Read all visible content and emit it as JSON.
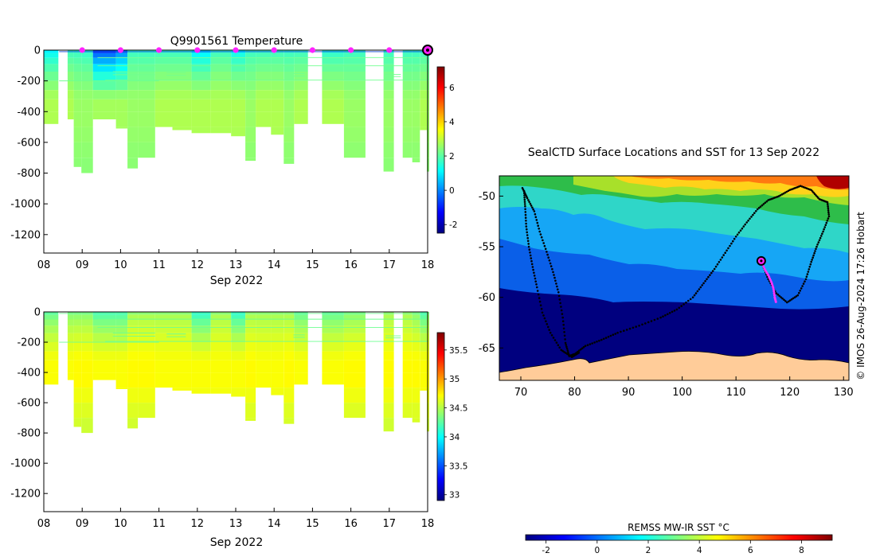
{
  "chart_data": [
    {
      "id": "temp",
      "type": "heatmap",
      "title": "Q9901561  Temperature",
      "xlabel": "Sep 2022",
      "x_ticks": [
        "08",
        "09",
        "10",
        "11",
        "12",
        "13",
        "14",
        "15",
        "16",
        "17",
        "18"
      ],
      "y_ticks": [
        "0",
        "-200",
        "-400",
        "-600",
        "-800",
        "-1000",
        "-1200"
      ],
      "ylim": [
        -1320,
        0
      ],
      "xlim": [
        8,
        18
      ],
      "colorbar": {
        "min": -2.5,
        "max": 7.2,
        "ticks": [
          "-2",
          "0",
          "2",
          "4",
          "6"
        ],
        "tick_values": [
          -2,
          0,
          2,
          4,
          6
        ]
      },
      "surface_markers": [
        9,
        10,
        11,
        12,
        13,
        14,
        15,
        16,
        17
      ],
      "latest_marker": 18,
      "profiles": [
        {
          "x0": 8.0,
          "x1": 8.38,
          "max_depth": 480,
          "surface": 0.8,
          "deep": 2.8
        },
        {
          "x0": 8.62,
          "x1": 8.78,
          "max_depth": 450,
          "surface": 1.5,
          "deep": 2.8
        },
        {
          "x0": 8.78,
          "x1": 8.98,
          "max_depth": 760,
          "surface": 1.5,
          "deep": 2.6
        },
        {
          "x0": 8.98,
          "x1": 9.28,
          "max_depth": 800,
          "surface": 1.4,
          "deep": 2.6
        },
        {
          "x0": 9.28,
          "x1": 9.88,
          "max_depth": 450,
          "surface": -1.2,
          "deep": 2.7
        },
        {
          "x0": 9.88,
          "x1": 10.18,
          "max_depth": 510,
          "surface": -0.6,
          "deep": 2.7
        },
        {
          "x0": 10.18,
          "x1": 10.45,
          "max_depth": 770,
          "surface": 1.5,
          "deep": 2.6
        },
        {
          "x0": 10.45,
          "x1": 10.9,
          "max_depth": 700,
          "surface": 1.5,
          "deep": 2.6
        },
        {
          "x0": 10.9,
          "x1": 11.35,
          "max_depth": 500,
          "surface": 1.5,
          "deep": 2.8
        },
        {
          "x0": 11.35,
          "x1": 11.85,
          "max_depth": 520,
          "surface": 1.5,
          "deep": 2.8
        },
        {
          "x0": 11.85,
          "x1": 12.35,
          "max_depth": 540,
          "surface": 0.6,
          "deep": 2.8
        },
        {
          "x0": 12.35,
          "x1": 12.88,
          "max_depth": 540,
          "surface": 1.5,
          "deep": 2.8
        },
        {
          "x0": 12.88,
          "x1": 13.25,
          "max_depth": 560,
          "surface": 0.9,
          "deep": 2.8
        },
        {
          "x0": 13.25,
          "x1": 13.52,
          "max_depth": 720,
          "surface": 1.5,
          "deep": 2.6
        },
        {
          "x0": 13.52,
          "x1": 13.92,
          "max_depth": 500,
          "surface": 1.5,
          "deep": 2.8
        },
        {
          "x0": 13.92,
          "x1": 14.25,
          "max_depth": 550,
          "surface": 1.5,
          "deep": 2.8
        },
        {
          "x0": 14.25,
          "x1": 14.52,
          "max_depth": 740,
          "surface": 1.5,
          "deep": 2.6
        },
        {
          "x0": 14.52,
          "x1": 14.88,
          "max_depth": 480,
          "surface": 1.5,
          "deep": 2.8
        },
        {
          "x0": 15.25,
          "x1": 15.82,
          "max_depth": 480,
          "surface": 1.3,
          "deep": 2.8
        },
        {
          "x0": 15.82,
          "x1": 16.38,
          "max_depth": 700,
          "surface": 1.5,
          "deep": 2.6
        },
        {
          "x0": 16.85,
          "x1": 17.12,
          "max_depth": 790,
          "surface": 1.5,
          "deep": 2.6
        },
        {
          "x0": 17.35,
          "x1": 17.6,
          "max_depth": 700,
          "surface": 1.5,
          "deep": 2.6
        },
        {
          "x0": 17.6,
          "x1": 17.8,
          "max_depth": 730,
          "surface": 1.5,
          "deep": 2.6
        },
        {
          "x0": 17.8,
          "x1": 17.98,
          "max_depth": 520,
          "surface": 1.5,
          "deep": 2.8
        },
        {
          "x0": 17.98,
          "x1": 18.05,
          "max_depth": 790,
          "surface": 1.5,
          "deep": 2.6
        }
      ]
    },
    {
      "id": "sal",
      "type": "heatmap",
      "title": "",
      "xlabel": "Sep 2022",
      "x_ticks": [
        "08",
        "09",
        "10",
        "11",
        "12",
        "13",
        "14",
        "15",
        "16",
        "17",
        "18"
      ],
      "y_ticks": [
        "0",
        "-200",
        "-400",
        "-600",
        "-800",
        "-1000",
        "-1200"
      ],
      "ylim": [
        -1320,
        0
      ],
      "xlim": [
        8,
        18
      ],
      "colorbar": {
        "min": 32.9,
        "max": 35.8,
        "ticks": [
          "33",
          "33.5",
          "34",
          "34.5",
          "35",
          "35.5"
        ],
        "tick_values": [
          33,
          33.5,
          34,
          34.5,
          35,
          35.5
        ]
      },
      "profiles": [
        {
          "x0": 8.0,
          "x1": 8.38,
          "max_depth": 480,
          "surface": 34.2,
          "deep": 34.7
        },
        {
          "x0": 8.62,
          "x1": 8.78,
          "max_depth": 450,
          "surface": 34.3,
          "deep": 34.7
        },
        {
          "x0": 8.78,
          "x1": 8.98,
          "max_depth": 760,
          "surface": 34.3,
          "deep": 34.72
        },
        {
          "x0": 8.98,
          "x1": 9.28,
          "max_depth": 800,
          "surface": 34.3,
          "deep": 34.72
        },
        {
          "x0": 9.28,
          "x1": 9.88,
          "max_depth": 450,
          "surface": 34.1,
          "deep": 34.7
        },
        {
          "x0": 9.88,
          "x1": 10.18,
          "max_depth": 510,
          "surface": 34.1,
          "deep": 34.7
        },
        {
          "x0": 10.18,
          "x1": 10.45,
          "max_depth": 770,
          "surface": 34.4,
          "deep": 34.72
        },
        {
          "x0": 10.45,
          "x1": 10.9,
          "max_depth": 700,
          "surface": 34.4,
          "deep": 34.72
        },
        {
          "x0": 10.9,
          "x1": 11.35,
          "max_depth": 500,
          "surface": 34.4,
          "deep": 34.7
        },
        {
          "x0": 11.35,
          "x1": 11.85,
          "max_depth": 520,
          "surface": 34.4,
          "deep": 34.7
        },
        {
          "x0": 11.85,
          "x1": 12.35,
          "max_depth": 540,
          "surface": 34.0,
          "deep": 34.7
        },
        {
          "x0": 12.35,
          "x1": 12.88,
          "max_depth": 540,
          "surface": 34.4,
          "deep": 34.7
        },
        {
          "x0": 12.88,
          "x1": 13.25,
          "max_depth": 560,
          "surface": 34.0,
          "deep": 34.7
        },
        {
          "x0": 13.25,
          "x1": 13.52,
          "max_depth": 720,
          "surface": 34.4,
          "deep": 34.72
        },
        {
          "x0": 13.52,
          "x1": 13.92,
          "max_depth": 500,
          "surface": 34.4,
          "deep": 34.7
        },
        {
          "x0": 13.92,
          "x1": 14.25,
          "max_depth": 550,
          "surface": 34.4,
          "deep": 34.7
        },
        {
          "x0": 14.25,
          "x1": 14.52,
          "max_depth": 740,
          "surface": 34.4,
          "deep": 34.72
        },
        {
          "x0": 14.52,
          "x1": 14.88,
          "max_depth": 480,
          "surface": 34.2,
          "deep": 34.7
        },
        {
          "x0": 15.25,
          "x1": 15.82,
          "max_depth": 480,
          "surface": 34.2,
          "deep": 34.7
        },
        {
          "x0": 15.82,
          "x1": 16.38,
          "max_depth": 700,
          "surface": 34.3,
          "deep": 34.72
        },
        {
          "x0": 16.85,
          "x1": 17.12,
          "max_depth": 790,
          "surface": 34.4,
          "deep": 34.72
        },
        {
          "x0": 17.35,
          "x1": 17.6,
          "max_depth": 700,
          "surface": 34.4,
          "deep": 34.72
        },
        {
          "x0": 17.6,
          "x1": 17.8,
          "max_depth": 730,
          "surface": 34.3,
          "deep": 34.72
        },
        {
          "x0": 17.8,
          "x1": 17.98,
          "max_depth": 520,
          "surface": 34.1,
          "deep": 34.7
        },
        {
          "x0": 17.98,
          "x1": 18.05,
          "max_depth": 790,
          "surface": 34.3,
          "deep": 34.72
        }
      ]
    },
    {
      "id": "map",
      "type": "heatmap",
      "title": "SealCTD Surface Locations and SST for 13 Sep 2022",
      "x_ticks": [
        "70",
        "80",
        "90",
        "100",
        "110",
        "120",
        "130"
      ],
      "x_tick_values": [
        70,
        80,
        90,
        100,
        110,
        120,
        130
      ],
      "y_ticks": [
        "-50",
        "-55",
        "-60",
        "-65"
      ],
      "y_tick_values": [
        -50,
        -55,
        -60,
        -65
      ],
      "xlim": [
        66,
        131
      ],
      "ylim": [
        -68.2,
        -48
      ],
      "current_position": {
        "lon": 114.7,
        "lat": -56.4
      },
      "colorbar": {
        "label": "REMSS MW-IR SST °C",
        "min": -2.8,
        "max": 9.2,
        "ticks": [
          "-2",
          "0",
          "2",
          "4",
          "6",
          "8"
        ],
        "tick_values": [
          -2,
          0,
          2,
          4,
          6,
          8
        ]
      },
      "credit": "© IMOS 26-Aug-2024 17:26 Hobart"
    }
  ],
  "colors": {
    "marker": "#ff22ff",
    "land": "#ffcc99",
    "track": "#000000",
    "recent_track": "#ff33ff"
  }
}
